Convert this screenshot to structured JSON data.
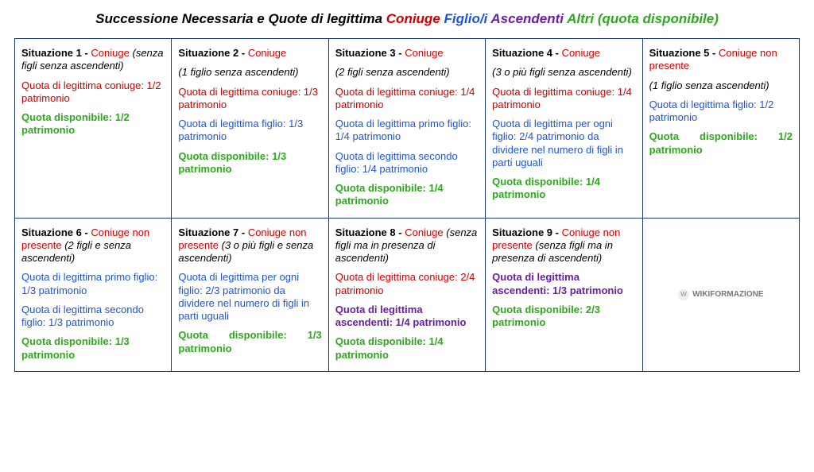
{
  "colors": {
    "coniuge": "#d00000",
    "figlio": "#1e55d6",
    "ascendenti": "#6a1ea3",
    "altri": "#2fa81e",
    "border": "#1b3a7a",
    "text": "#000000",
    "background": "#ffffff"
  },
  "title": {
    "main": "Successione Necessaria e Quote di legittima",
    "legend_coniuge": "Coniuge",
    "legend_figlio": "Figlio/i",
    "legend_ascendenti": "Ascendenti",
    "legend_altri": "Altri (quota disponibile)"
  },
  "logo": {
    "mark": "W",
    "text": "WIKIFORMAZIONE"
  },
  "cells": {
    "s1": {
      "hdr_pre": "Situazione 1 -",
      "hdr_col": "Coniuge",
      "hdr_post": "(senza figli senza ascendenti)",
      "l1": "Quota di legittima coniuge: 1/2 patrimonio",
      "l2": "Quota disponibile: 1/2 patrimonio"
    },
    "s2": {
      "hdr_pre": "Situazione 2 -",
      "hdr_col": "Coniuge",
      "hdr_post": "(1 figlio senza ascendenti)",
      "l1": "Quota di legittima coniuge: 1/3 patrimonio",
      "l2": "Quota di legittima figlio: 1/3 patrimonio",
      "l3": "Quota disponibile: 1/3 patrimonio"
    },
    "s3": {
      "hdr_pre": "Situazione 3 -",
      "hdr_col": "Coniuge",
      "hdr_post": "(2 figli senza ascendenti)",
      "l1": "Quota di legittima coniuge: 1/4 patrimonio",
      "l2": "Quota di legittima primo figlio: 1/4 patrimonio",
      "l3": "Quota di legittima secondo figlio: 1/4 patrimonio",
      "l4": "Quota disponibile: 1/4 patrimonio"
    },
    "s4": {
      "hdr_pre": "Situazione 4 -",
      "hdr_col": "Coniuge",
      "hdr_post": "(3 o più figli senza ascendenti)",
      "l1": "Quota di legittima coniuge: 1/4 patrimonio",
      "l2": "Quota di legittima per ogni figlio: 2/4 patrimonio da dividere nel numero di figli in parti uguali",
      "l3": "Quota disponibile: 1/4 patrimonio"
    },
    "s5": {
      "hdr_pre": "Situazione 5 -",
      "hdr_col": "Coniuge non presente",
      "hdr_post": "(1 figlio senza ascendenti)",
      "l1": "Quota di legittima figlio: 1/2 patrimonio",
      "l2": "Quota disponibile: 1/2 patrimonio"
    },
    "s6": {
      "hdr_pre": "Situazione 6 -",
      "hdr_col": "Coniuge non presente",
      "hdr_post": "(2 figli e senza ascendenti)",
      "l1": "Quota di legittima primo figlio: 1/3 patrimonio",
      "l2": "Quota di legittima secondo figlio: 1/3 patrimonio",
      "l3": "Quota disponibile: 1/3 patrimonio"
    },
    "s7": {
      "hdr_pre": "Situazione 7 -",
      "hdr_col": "Coniuge non presente",
      "hdr_post": "(3 o più figli e senza ascendenti)",
      "l1": "Quota di legittima per ogni figlio: 2/3 patrimonio da dividere nel numero di figli in parti uguali",
      "l2": "Quota disponibile: 1/3 patrimonio"
    },
    "s8": {
      "hdr_pre": "Situazione 8 -",
      "hdr_col": "Coniuge",
      "hdr_post": "(senza figli ma in presenza di ascendenti)",
      "l1": "Quota di legittima coniuge: 2/4 patrimonio",
      "l2": "Quota di legittima ascendenti: 1/4 patrimonio",
      "l3": "Quota disponibile: 1/4 patrimonio"
    },
    "s9": {
      "hdr_pre": "Situazione 9 -",
      "hdr_col": "Coniuge non presente",
      "hdr_post": "(senza figli ma in presenza di ascendenti)",
      "l1": "Quota di legittima ascendenti: 1/3 patrimonio",
      "l2": "Quota disponibile: 2/3 patrimonio"
    }
  }
}
